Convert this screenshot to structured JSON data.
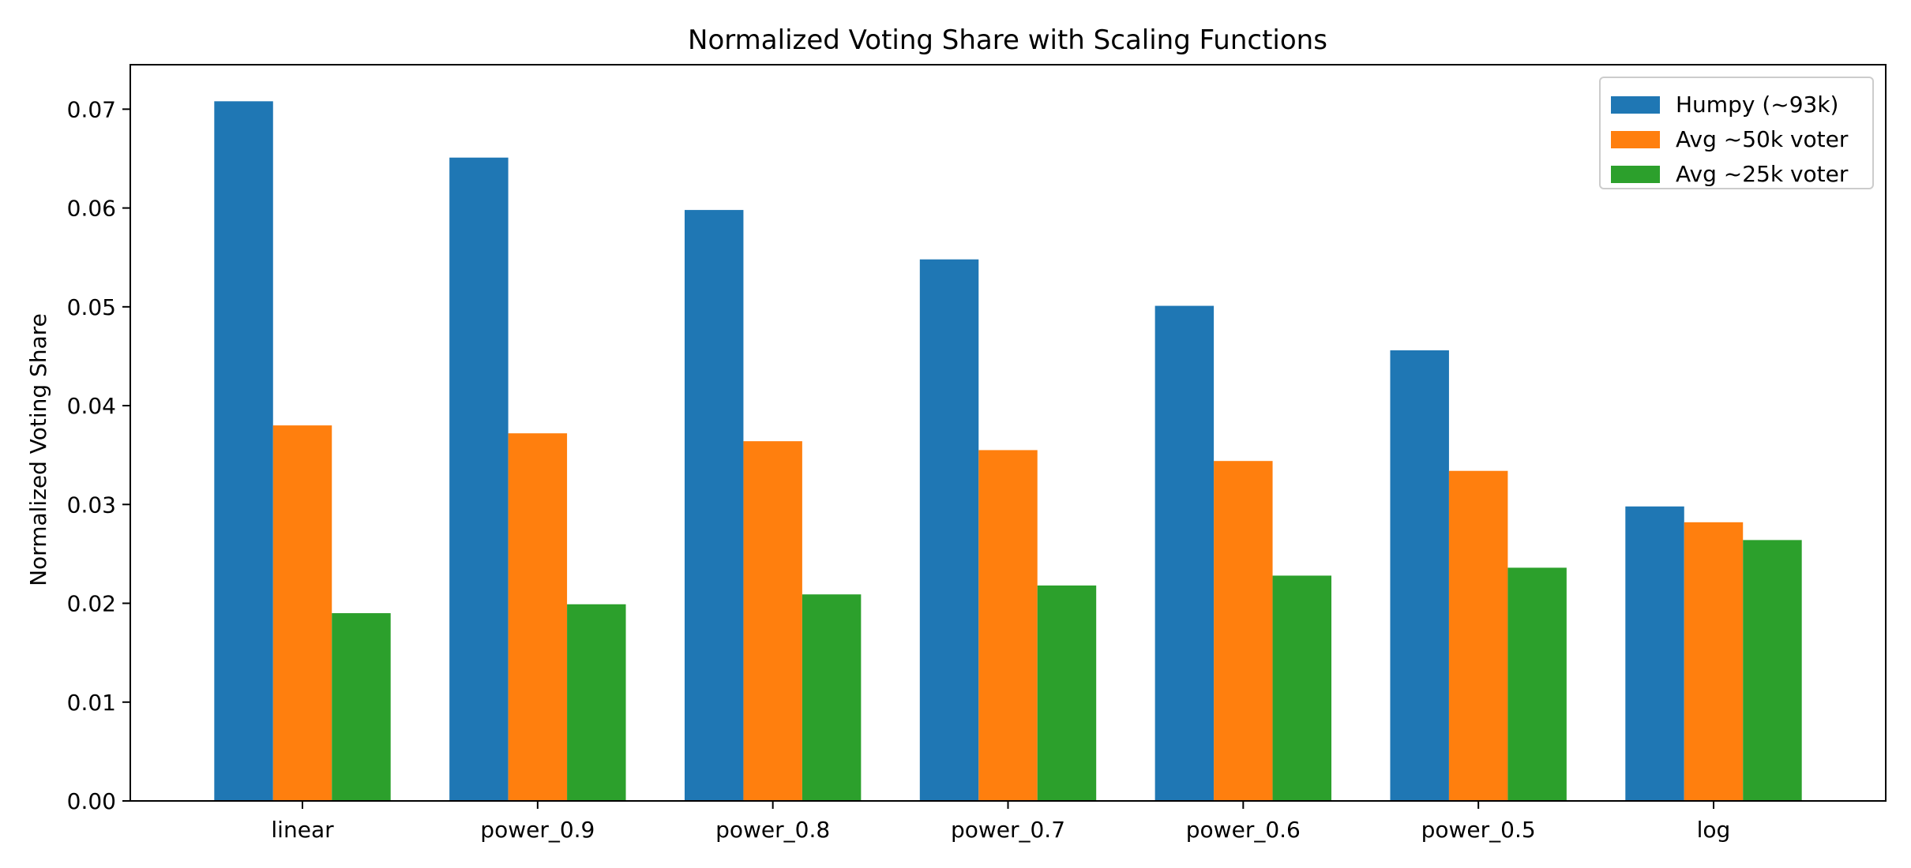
{
  "chart_data": {
    "type": "bar",
    "title": "Normalized Voting Share with Scaling Functions",
    "xlabel": "",
    "ylabel": "Normalized Voting Share",
    "categories": [
      "linear",
      "power_0.9",
      "power_0.8",
      "power_0.7",
      "power_0.6",
      "power_0.5",
      "log"
    ],
    "series": [
      {
        "name": "Humpy (~93k)",
        "color": "#1f77b4",
        "values": [
          0.0708,
          0.0651,
          0.0598,
          0.0548,
          0.0501,
          0.0456,
          0.0298
        ]
      },
      {
        "name": "Avg ~50k voter",
        "color": "#ff7f0e",
        "values": [
          0.038,
          0.0372,
          0.0364,
          0.0355,
          0.0344,
          0.0334,
          0.0282
        ]
      },
      {
        "name": "Avg ~25k voter",
        "color": "#2ca02c",
        "values": [
          0.019,
          0.0199,
          0.0209,
          0.0218,
          0.0228,
          0.0236,
          0.0264
        ]
      }
    ],
    "ylim": [
      0,
      0.0745
    ],
    "yticks": [
      "0.00",
      "0.01",
      "0.02",
      "0.03",
      "0.04",
      "0.05",
      "0.06",
      "0.07"
    ],
    "grid": false,
    "legend_position": "top-right"
  }
}
